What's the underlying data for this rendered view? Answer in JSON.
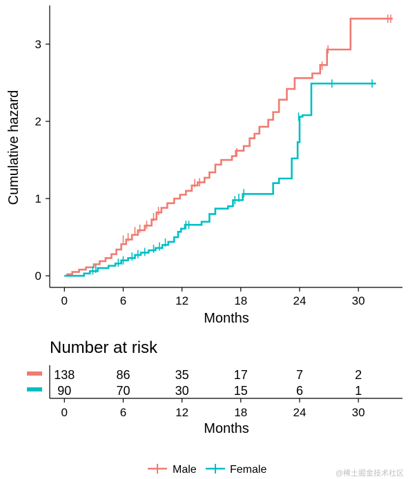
{
  "chart_data": {
    "type": "line",
    "step": true,
    "ylabel": "Cumulative hazard",
    "xlabel": "Months",
    "x_ticks": [
      0,
      6,
      12,
      18,
      24,
      30
    ],
    "y_ticks": [
      0,
      1,
      2,
      3
    ],
    "xlim": [
      -1.5,
      34.5
    ],
    "ylim": [
      -0.15,
      3.5
    ],
    "grid": false,
    "legend_position": "bottom",
    "series": [
      {
        "name": "Male",
        "color": "#F07B72",
        "points": [
          [
            0,
            0
          ],
          [
            0.3,
            0.02
          ],
          [
            0.8,
            0.05
          ],
          [
            1.5,
            0.08
          ],
          [
            2.2,
            0.11
          ],
          [
            3,
            0.15
          ],
          [
            3.6,
            0.19
          ],
          [
            4.2,
            0.23
          ],
          [
            4.8,
            0.28
          ],
          [
            5.3,
            0.34
          ],
          [
            5.8,
            0.41
          ],
          [
            6.3,
            0.47
          ],
          [
            6.9,
            0.53
          ],
          [
            7.5,
            0.59
          ],
          [
            8.2,
            0.65
          ],
          [
            8.9,
            0.73
          ],
          [
            9.4,
            0.82
          ],
          [
            9.9,
            0.88
          ],
          [
            10.5,
            0.94
          ],
          [
            11.2,
            1.0
          ],
          [
            11.8,
            1.05
          ],
          [
            12.4,
            1.1
          ],
          [
            13,
            1.17
          ],
          [
            13.6,
            1.21
          ],
          [
            14.3,
            1.27
          ],
          [
            14.8,
            1.34
          ],
          [
            15.4,
            1.44
          ],
          [
            16,
            1.5
          ],
          [
            17.1,
            1.55
          ],
          [
            17.5,
            1.62
          ],
          [
            18.3,
            1.68
          ],
          [
            18.9,
            1.78
          ],
          [
            19.4,
            1.84
          ],
          [
            19.9,
            1.93
          ],
          [
            20.8,
            2.02
          ],
          [
            21.3,
            2.12
          ],
          [
            21.9,
            2.28
          ],
          [
            22.7,
            2.42
          ],
          [
            23.5,
            2.56
          ],
          [
            25.3,
            2.62
          ],
          [
            26.1,
            2.73
          ],
          [
            26.8,
            2.93
          ],
          [
            29.2,
            3.33
          ],
          [
            33.5,
            3.33
          ]
        ],
        "censor_marks": [
          [
            6,
            0.47
          ],
          [
            6.5,
            0.5
          ],
          [
            7.2,
            0.58
          ],
          [
            7.7,
            0.61
          ],
          [
            8.4,
            0.66
          ],
          [
            9.1,
            0.76
          ],
          [
            9.6,
            0.84
          ],
          [
            13.3,
            1.2
          ],
          [
            13.8,
            1.21
          ],
          [
            17.6,
            1.6
          ],
          [
            26.3,
            2.72
          ],
          [
            26.9,
            2.93
          ],
          [
            33,
            3.33
          ],
          [
            33.3,
            3.33
          ]
        ]
      },
      {
        "name": "Female",
        "color": "#00BFC4",
        "points": [
          [
            0,
            0
          ],
          [
            2,
            0.03
          ],
          [
            2.6,
            0.06
          ],
          [
            3.4,
            0.1
          ],
          [
            4.5,
            0.13
          ],
          [
            5.2,
            0.16
          ],
          [
            5.8,
            0.2
          ],
          [
            6.5,
            0.23
          ],
          [
            7.2,
            0.27
          ],
          [
            7.8,
            0.3
          ],
          [
            8.6,
            0.33
          ],
          [
            9.3,
            0.36
          ],
          [
            10,
            0.4
          ],
          [
            10.6,
            0.44
          ],
          [
            11.2,
            0.5
          ],
          [
            11.6,
            0.57
          ],
          [
            11.9,
            0.61
          ],
          [
            12.3,
            0.66
          ],
          [
            14,
            0.7
          ],
          [
            14.8,
            0.8
          ],
          [
            15.4,
            0.87
          ],
          [
            16.7,
            0.9
          ],
          [
            17.2,
            0.98
          ],
          [
            18.2,
            1.06
          ],
          [
            21.3,
            1.2
          ],
          [
            21.9,
            1.26
          ],
          [
            23.2,
            1.52
          ],
          [
            23.8,
            1.73
          ],
          [
            24,
            2.06
          ],
          [
            24.3,
            2.08
          ],
          [
            25.2,
            2.49
          ],
          [
            31.8,
            2.49
          ]
        ],
        "censor_marks": [
          [
            2.9,
            0.07
          ],
          [
            3.2,
            0.09
          ],
          [
            5.5,
            0.17
          ],
          [
            6,
            0.2
          ],
          [
            6.9,
            0.25
          ],
          [
            7.5,
            0.28
          ],
          [
            8.2,
            0.31
          ],
          [
            9.1,
            0.35
          ],
          [
            9.7,
            0.38
          ],
          [
            10.3,
            0.43
          ],
          [
            12.4,
            0.66
          ],
          [
            12.7,
            0.66
          ],
          [
            17.4,
            0.98
          ],
          [
            17.8,
            1.01
          ],
          [
            18.3,
            1.07
          ],
          [
            23.9,
            2.06
          ],
          [
            27.3,
            2.49
          ],
          [
            31.4,
            2.49
          ]
        ]
      }
    ]
  },
  "risk_table": {
    "title": "Number at risk",
    "xlabel": "Months",
    "rows": [
      {
        "strata": "Male",
        "color": "#F07B72",
        "values": [
          "138",
          "86",
          "35",
          "17",
          "7",
          "2"
        ]
      },
      {
        "strata": "Female",
        "color": "#00BFC4",
        "values": [
          "90",
          "70",
          "30",
          "15",
          "6",
          "1"
        ]
      }
    ]
  },
  "legend": {
    "items": [
      {
        "label": "Male",
        "color": "#F07B72"
      },
      {
        "label": "Female",
        "color": "#00BFC4"
      }
    ]
  },
  "watermark": "@稀土掘金技术社区"
}
